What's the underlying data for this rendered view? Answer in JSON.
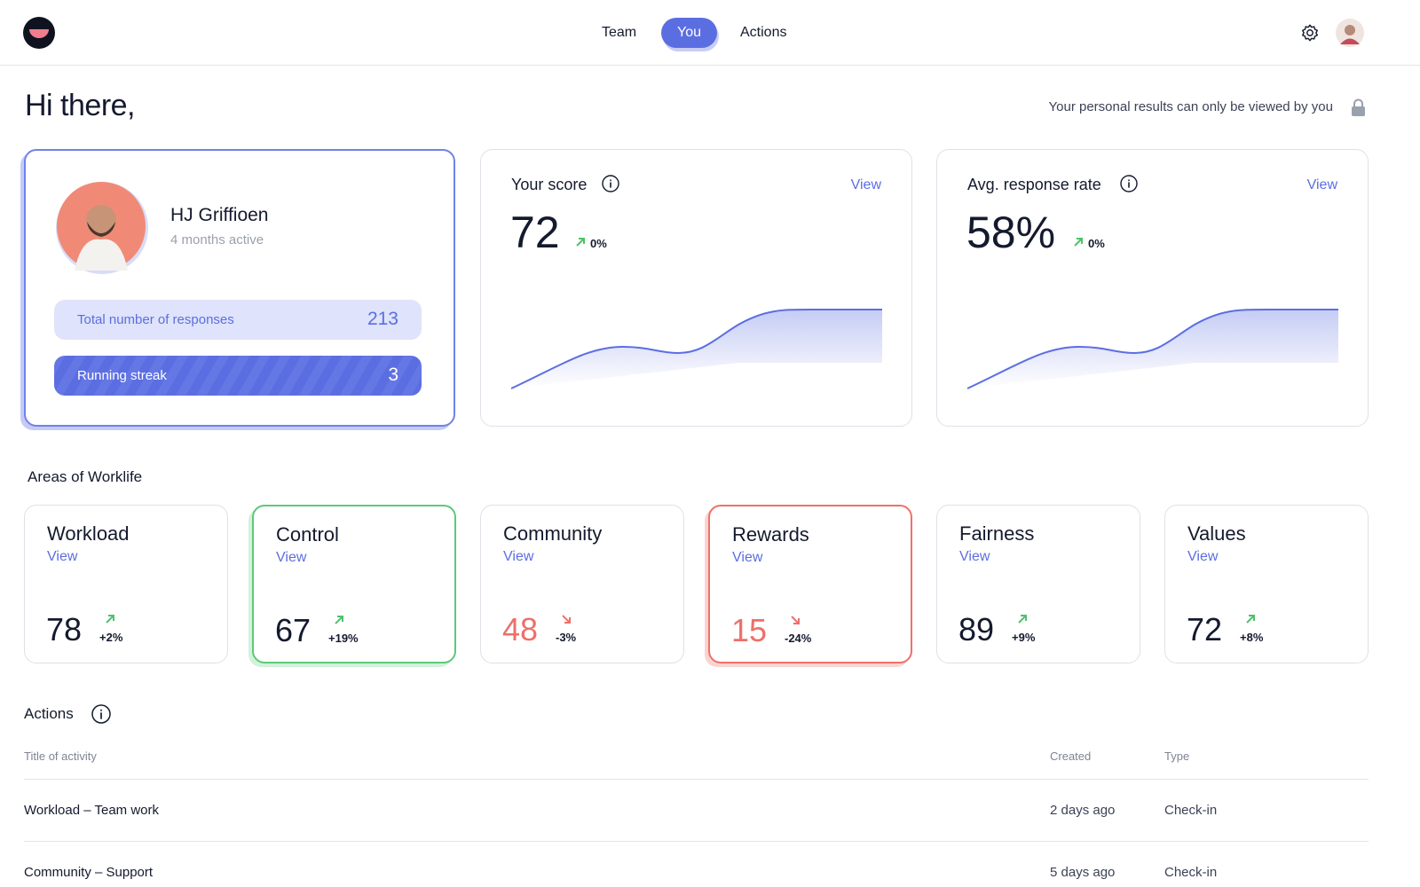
{
  "header": {
    "nav": [
      "Team",
      "You",
      "Actions"
    ]
  },
  "greeting": "Hi there,",
  "privacy_note": "Your personal results can only be viewed by you",
  "profile": {
    "name": "HJ Griffioen",
    "activity": "4 months active",
    "stats": [
      {
        "label": "Total number of responses",
        "value": 213
      },
      {
        "label": "Running streak",
        "value": 3
      }
    ]
  },
  "metrics": [
    {
      "title": "Your score",
      "link": "View",
      "value": "72",
      "change": "0%"
    },
    {
      "title": "Avg. response rate",
      "link": "View",
      "value": "58%",
      "change": "0%"
    }
  ],
  "areas": {
    "title": "Areas of Worklife",
    "items": [
      {
        "name": "Workload",
        "link": "View",
        "score": 78,
        "change": "+2%"
      },
      {
        "name": "Control",
        "link": "View",
        "score": 67,
        "change": "+19%"
      },
      {
        "name": "Community",
        "link": "View",
        "score": 48,
        "change": "-3%"
      },
      {
        "name": "Rewards",
        "link": "View",
        "score": 15,
        "change": "-24%"
      },
      {
        "name": "Fairness",
        "link": "View",
        "score": 89,
        "change": "+9%"
      },
      {
        "name": "Values",
        "link": "View",
        "score": 72,
        "change": "+8%"
      }
    ]
  },
  "actions": {
    "title": "Actions",
    "columns": [
      "Title of activity",
      "Created",
      "Type"
    ],
    "rows": [
      [
        "Workload – Team work",
        "2 days ago",
        "Check-in"
      ],
      [
        "Community – Support",
        "5 days ago",
        "Check-in"
      ]
    ]
  }
}
